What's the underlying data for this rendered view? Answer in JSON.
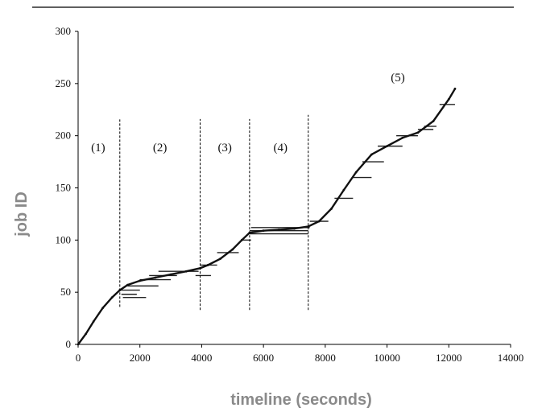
{
  "chart_data": {
    "type": "line",
    "title": "",
    "xlabel": "timeline (seconds)",
    "ylabel": "job ID",
    "xlim": [
      0,
      14000
    ],
    "ylim": [
      0,
      300
    ],
    "x_ticks": [
      "0",
      "2000",
      "4000",
      "6000",
      "8000",
      "10000",
      "12000",
      "14000"
    ],
    "y_ticks": [
      "0",
      "50",
      "100",
      "150",
      "200",
      "250",
      "300"
    ],
    "grid": false,
    "legend": "none",
    "phase_boundaries": [
      1350,
      3950,
      5550,
      7450
    ],
    "phase_lines": [
      {
        "x": 1350,
        "y_from": 36,
        "y_to": 216,
        "style": "dashed"
      },
      {
        "x": 3950,
        "y_from": 33,
        "y_to": 216,
        "style": "dashed"
      },
      {
        "x": 5550,
        "y_from": 33,
        "y_to": 216,
        "style": "dashed"
      },
      {
        "x": 7450,
        "y_from": 33,
        "y_to": 220,
        "style": "dashed"
      }
    ],
    "phase_labels": [
      {
        "text": "(1)",
        "x": 650,
        "y": 185
      },
      {
        "text": "(2)",
        "x": 2650,
        "y": 185
      },
      {
        "text": "(3)",
        "x": 4750,
        "y": 185
      },
      {
        "text": "(4)",
        "x": 6550,
        "y": 185
      },
      {
        "text": "(5)",
        "x": 10350,
        "y": 252
      }
    ],
    "series": [
      {
        "x": [
          0,
          250,
          500,
          800,
          1100,
          1350,
          1600,
          2000,
          2500,
          3000,
          3500,
          3950,
          4200,
          4600,
          5000,
          5300,
          5550,
          6000,
          6500,
          7000,
          7450,
          7800,
          8200,
          8600,
          9000,
          9500,
          10000,
          10500,
          11000,
          11500,
          12000,
          12200
        ],
        "values": [
          0,
          10,
          22,
          35,
          45,
          52,
          57,
          61,
          64,
          67,
          70,
          73,
          76,
          82,
          91,
          100,
          107,
          109,
          110,
          111,
          113,
          118,
          130,
          148,
          165,
          182,
          190,
          198,
          203,
          214,
          235,
          245
        ]
      }
    ],
    "job_bars": [
      {
        "start": 1350,
        "end": 2000,
        "y": 52
      },
      {
        "start": 1400,
        "end": 1900,
        "y": 48
      },
      {
        "start": 1450,
        "end": 2200,
        "y": 45
      },
      {
        "start": 1600,
        "end": 2600,
        "y": 56
      },
      {
        "start": 2000,
        "end": 3000,
        "y": 62
      },
      {
        "start": 2300,
        "end": 3200,
        "y": 66
      },
      {
        "start": 2600,
        "end": 3900,
        "y": 70
      },
      {
        "start": 3800,
        "end": 4300,
        "y": 66
      },
      {
        "start": 3950,
        "end": 4500,
        "y": 76
      },
      {
        "start": 4500,
        "end": 5200,
        "y": 88
      },
      {
        "start": 5300,
        "end": 5600,
        "y": 100
      },
      {
        "start": 5550,
        "end": 7450,
        "y": 106
      },
      {
        "start": 5550,
        "end": 7450,
        "y": 109
      },
      {
        "start": 5600,
        "end": 7500,
        "y": 112
      },
      {
        "start": 7500,
        "end": 8100,
        "y": 118
      },
      {
        "start": 8300,
        "end": 8900,
        "y": 140
      },
      {
        "start": 8900,
        "end": 9500,
        "y": 160
      },
      {
        "start": 9200,
        "end": 9900,
        "y": 175
      },
      {
        "start": 9700,
        "end": 10500,
        "y": 190
      },
      {
        "start": 10300,
        "end": 11000,
        "y": 200
      },
      {
        "start": 11000,
        "end": 11500,
        "y": 206
      },
      {
        "start": 11200,
        "end": 11600,
        "y": 209
      },
      {
        "start": 11700,
        "end": 12200,
        "y": 230
      }
    ]
  }
}
